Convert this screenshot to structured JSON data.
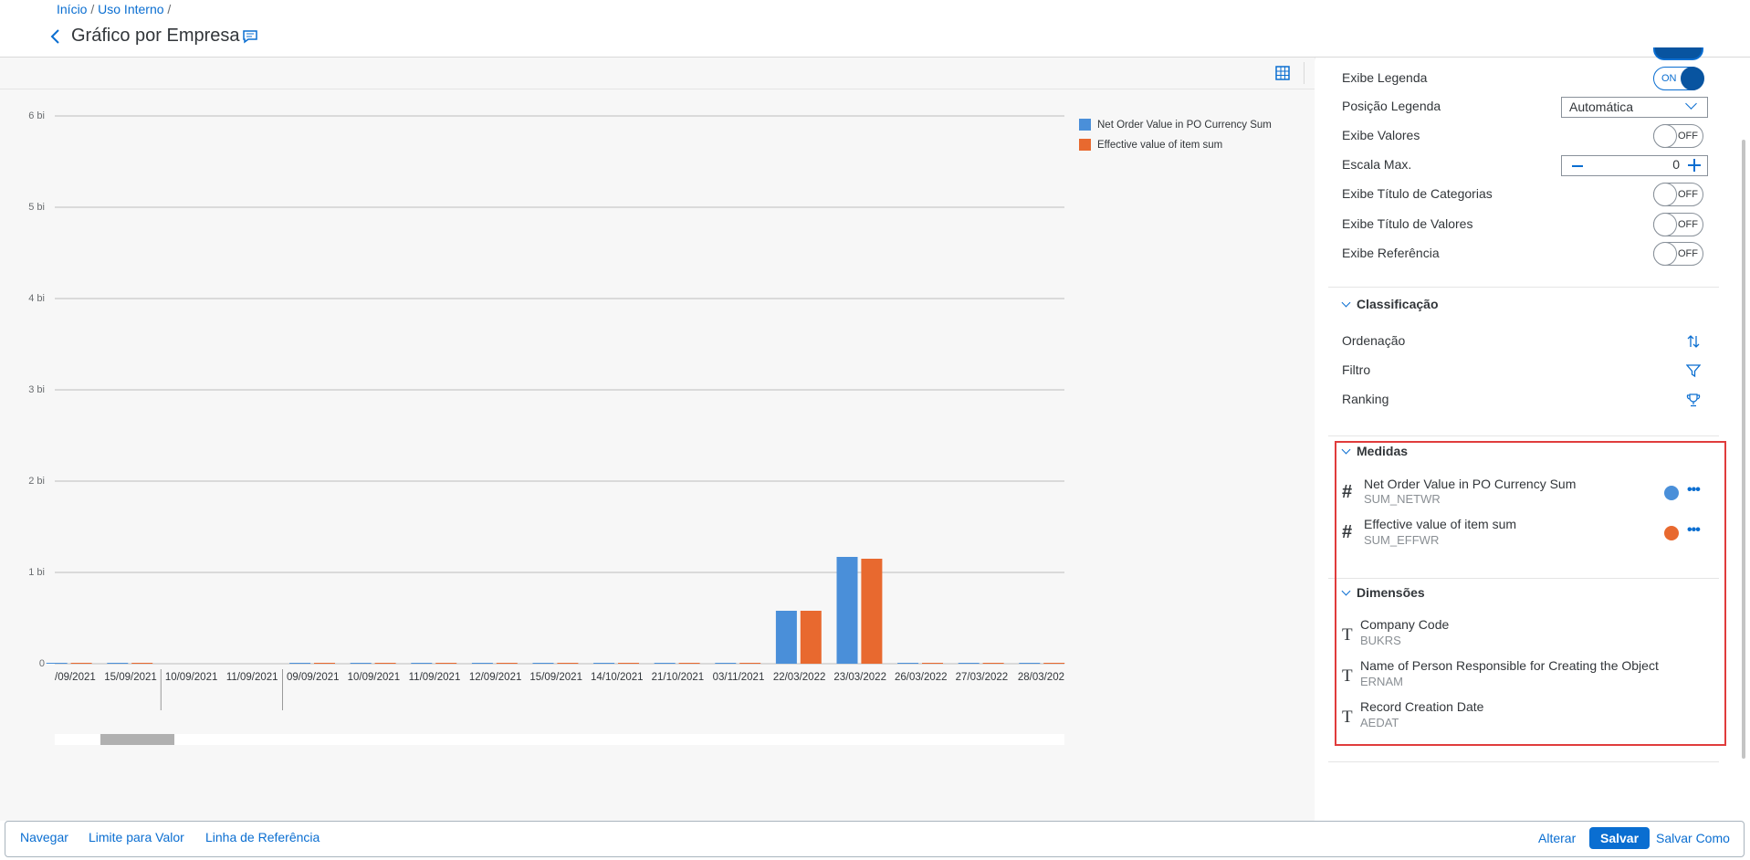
{
  "header": {
    "breadcrumbs": [
      "Início",
      "Uso Interno"
    ],
    "separator": "/",
    "title": "Gráfico por Empresa"
  },
  "chart_data": {
    "type": "bar",
    "categories": [
      "/09/2021",
      "15/09/2021",
      "10/09/2021",
      "11/09/2021",
      "09/09/2021",
      "10/09/2021",
      "11/09/2021",
      "12/09/2021",
      "15/09/2021",
      "14/10/2021",
      "21/10/2021",
      "03/11/2021",
      "22/03/2022",
      "23/03/2022",
      "26/03/2022",
      "27/03/2022",
      "28/03/202"
    ],
    "series": [
      {
        "name": "Net Order Value in PO Currency Sum",
        "color": "#4a8fd9",
        "values": [
          0.01,
          0.01,
          null,
          null,
          0.01,
          0.01,
          0.01,
          0.01,
          0.01,
          0.01,
          0.01,
          0.01,
          0.58,
          1.17,
          0.01,
          0.01,
          0.01
        ]
      },
      {
        "name": "Effective value of item sum",
        "color": "#e8692f",
        "values": [
          0.01,
          0.01,
          null,
          null,
          0.01,
          0.01,
          0.01,
          0.01,
          0.01,
          0.01,
          0.01,
          0.01,
          0.58,
          1.15,
          0.01,
          0.01,
          0.01
        ]
      }
    ],
    "ylim": [
      0,
      6
    ],
    "yticks": [
      0,
      {
        "value": 1,
        "label": "1 bi"
      },
      {
        "value": 2,
        "label": "2 bi"
      },
      {
        "value": 3,
        "label": "3 bi"
      },
      {
        "value": 4,
        "label": "4 bi"
      },
      {
        "value": 5,
        "label": "5 bi"
      },
      {
        "value": 6,
        "label": "6 bi"
      }
    ],
    "grid": true,
    "legend": "top-right"
  },
  "settings": [
    {
      "label": "Exibe Legenda",
      "state": "ON"
    },
    {
      "label": "Posição Legenda",
      "value": "Automática"
    },
    {
      "label": "Exibe Valores",
      "state": "OFF"
    },
    {
      "label": "Escala Max.",
      "value": "0"
    },
    {
      "label": "Exibe Título de Categorias",
      "state": "OFF"
    },
    {
      "label": "Exibe Título de Valores",
      "state": "OFF"
    },
    {
      "label": "Exibe Referência",
      "state": "OFF"
    }
  ],
  "classification": {
    "title": "Classificação",
    "items": [
      "Ordenação",
      "Filtro",
      "Ranking"
    ]
  },
  "measures": {
    "title": "Medidas",
    "items": [
      {
        "name": "Net Order Value in PO Currency Sum",
        "field": "SUM_NETWR",
        "color": "#4a8fd9"
      },
      {
        "name": "Effective value of item sum",
        "field": "SUM_EFFWR",
        "color": "#e8692f"
      }
    ]
  },
  "dimensions": {
    "title": "Dimensões",
    "items": [
      {
        "name": "Company Code",
        "field": "BUKRS"
      },
      {
        "name": "Name of Person Responsible for Creating the Object",
        "field": "ERNAM"
      },
      {
        "name": "Record Creation Date",
        "field": "AEDAT"
      }
    ]
  },
  "footer": {
    "left": [
      "Navegar",
      "Limite para Valor",
      "Linha de Referência"
    ],
    "right": [
      "Alterar",
      "Salvar",
      "Salvar Como"
    ]
  }
}
